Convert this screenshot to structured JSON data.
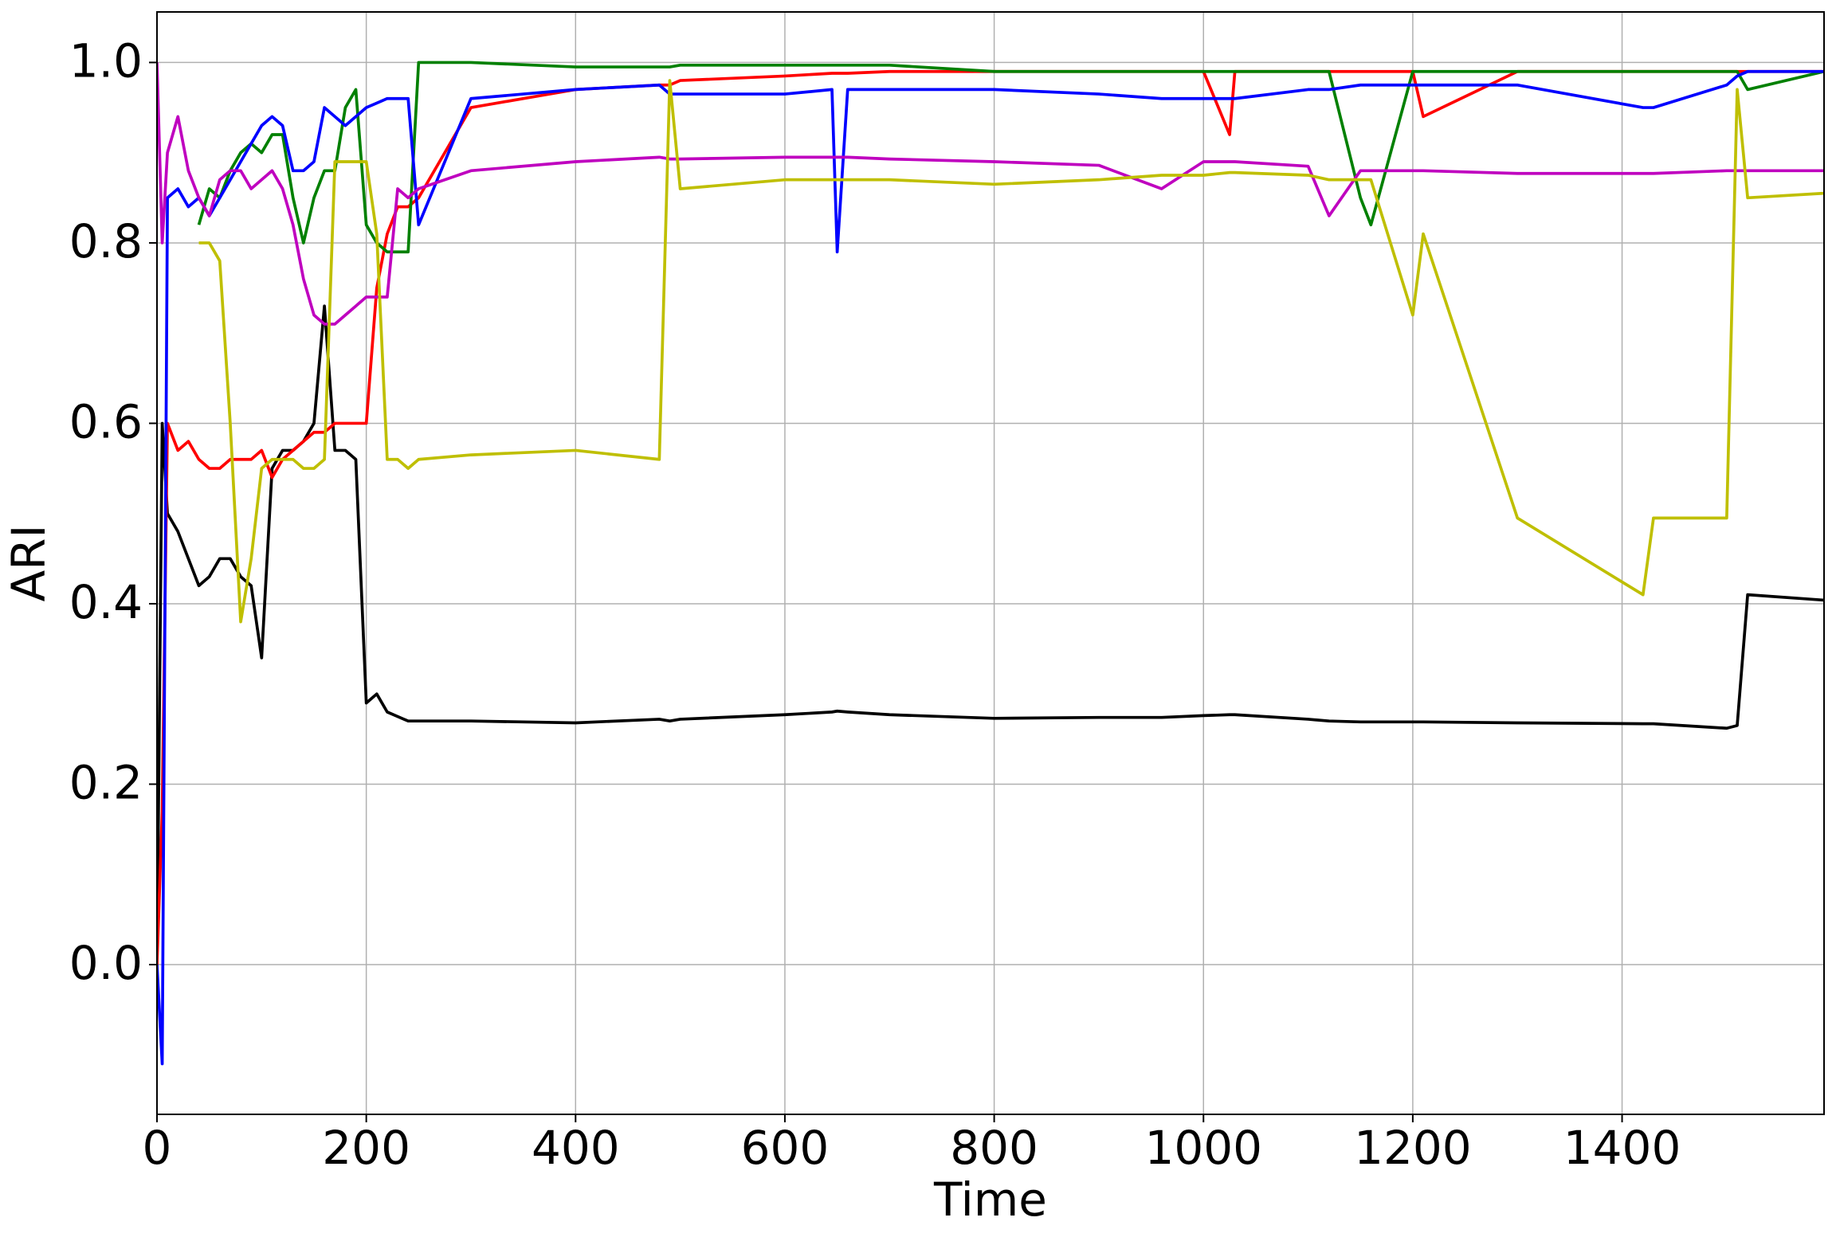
{
  "chart_data": {
    "type": "line",
    "x_label": "Time",
    "y_label": "ARI",
    "x": [
      0,
      5,
      10,
      20,
      30,
      40,
      50,
      60,
      70,
      80,
      90,
      100,
      110,
      120,
      130,
      140,
      150,
      160,
      170,
      180,
      190,
      200,
      210,
      220,
      230,
      240,
      250,
      300,
      400,
      480,
      490,
      500,
      600,
      645,
      650,
      660,
      700,
      800,
      900,
      960,
      1000,
      1025,
      1030,
      1100,
      1120,
      1150,
      1160,
      1200,
      1210,
      1300,
      1420,
      1430,
      1500,
      1510,
      1520,
      1593
    ],
    "series": [
      {
        "color": "#000000",
        "values": [
          0,
          0.6,
          0.5,
          0.48,
          0.45,
          0.42,
          0.43,
          0.45,
          0.45,
          0.43,
          0.42,
          0.34,
          0.55,
          0.57,
          0.57,
          0.58,
          0.6,
          0.73,
          0.57,
          0.57,
          0.56,
          0.29,
          0.3,
          0.28,
          0.275,
          0.27,
          0.27,
          0.27,
          0.268,
          0.272,
          0.27,
          0.272,
          0.277,
          0.28,
          0.281,
          0.28,
          0.277,
          0.273,
          0.274,
          0.274,
          0.276,
          0.277,
          0.277,
          0.272,
          0.27,
          0.269,
          0.269,
          0.269,
          0.269,
          0.268,
          0.267,
          0.267,
          0.262,
          0.265,
          0.41,
          0.404
        ]
      },
      {
        "color": "#ff0000",
        "values": [
          0,
          0.17,
          0.6,
          0.57,
          0.58,
          0.56,
          0.55,
          0.55,
          0.56,
          0.56,
          0.56,
          0.57,
          0.54,
          0.56,
          0.57,
          0.58,
          0.59,
          0.59,
          0.6,
          0.6,
          0.6,
          0.6,
          0.75,
          0.81,
          0.84,
          0.84,
          0.85,
          0.95,
          0.97,
          0.975,
          0.975,
          0.98,
          0.985,
          0.988,
          0.988,
          0.988,
          0.99,
          0.99,
          0.99,
          0.99,
          0.99,
          0.92,
          0.99,
          0.99,
          0.99,
          0.99,
          0.99,
          0.99,
          0.94,
          0.99,
          0.99,
          0.99,
          0.99,
          0.99,
          0.99,
          0.99
        ]
      },
      {
        "color": "#008000",
        "values": [
          null,
          null,
          null,
          null,
          null,
          0.82,
          0.86,
          0.85,
          0.88,
          0.9,
          0.91,
          0.9,
          0.92,
          0.92,
          0.85,
          0.8,
          0.85,
          0.88,
          0.88,
          0.95,
          0.97,
          0.82,
          0.8,
          0.79,
          0.79,
          0.79,
          1.0,
          1.0,
          0.995,
          0.995,
          0.995,
          0.997,
          0.997,
          0.997,
          0.997,
          0.997,
          0.997,
          0.99,
          0.99,
          0.99,
          0.99,
          0.99,
          0.99,
          0.99,
          0.99,
          0.85,
          0.82,
          0.99,
          0.99,
          0.99,
          0.99,
          0.99,
          0.99,
          0.99,
          0.97,
          0.99
        ]
      },
      {
        "color": "#0000ff",
        "values": [
          0,
          -0.11,
          0.85,
          0.86,
          0.84,
          0.85,
          0.83,
          0.85,
          0.87,
          0.89,
          0.91,
          0.93,
          0.94,
          0.93,
          0.88,
          0.88,
          0.89,
          0.95,
          0.94,
          0.93,
          0.94,
          0.95,
          0.955,
          0.96,
          0.96,
          0.96,
          0.82,
          0.96,
          0.97,
          0.975,
          0.965,
          0.965,
          0.965,
          0.97,
          0.79,
          0.97,
          0.97,
          0.97,
          0.965,
          0.96,
          0.96,
          0.96,
          0.96,
          0.97,
          0.97,
          0.975,
          0.975,
          0.975,
          0.975,
          0.975,
          0.95,
          0.95,
          0.975,
          0.985,
          0.99,
          0.99
        ]
      },
      {
        "color": "#bf00bf",
        "values": [
          1.0,
          0.8,
          0.9,
          0.94,
          0.88,
          0.85,
          0.83,
          0.87,
          0.88,
          0.88,
          0.86,
          0.87,
          0.88,
          0.86,
          0.82,
          0.76,
          0.72,
          0.71,
          0.71,
          0.72,
          0.73,
          0.74,
          0.74,
          0.74,
          0.86,
          0.85,
          0.86,
          0.88,
          0.89,
          0.895,
          0.893,
          0.893,
          0.895,
          0.895,
          0.895,
          0.895,
          0.893,
          0.89,
          0.886,
          0.86,
          0.89,
          0.89,
          0.89,
          0.885,
          0.83,
          0.88,
          0.88,
          0.88,
          0.88,
          0.877,
          0.877,
          0.877,
          0.88,
          0.88,
          0.88,
          0.88
        ]
      },
      {
        "color": "#bfbf00",
        "values": [
          null,
          null,
          null,
          null,
          null,
          0.8,
          0.8,
          0.78,
          0.6,
          0.38,
          0.45,
          0.55,
          0.56,
          0.56,
          0.56,
          0.55,
          0.55,
          0.56,
          0.89,
          0.89,
          0.89,
          0.89,
          0.81,
          0.56,
          0.56,
          0.55,
          0.56,
          0.565,
          0.57,
          0.56,
          0.98,
          0.86,
          0.87,
          0.87,
          0.87,
          0.87,
          0.87,
          0.865,
          0.87,
          0.875,
          0.875,
          0.878,
          0.878,
          0.875,
          0.87,
          0.87,
          0.87,
          0.72,
          0.81,
          0.495,
          0.41,
          0.495,
          0.495,
          0.97,
          0.85,
          0.855
        ]
      }
    ],
    "xlim": [
      0,
      1593
    ],
    "ylim": [
      -0.166,
      1.056
    ],
    "xticks": [
      0,
      200,
      400,
      600,
      800,
      1000,
      1200,
      1400
    ],
    "yticks": [
      {
        "value": 0,
        "label": "0.0"
      },
      0.2,
      0.4,
      0.6,
      0.8,
      {
        "value": 1,
        "label": "1.0"
      }
    ],
    "grid": true
  }
}
